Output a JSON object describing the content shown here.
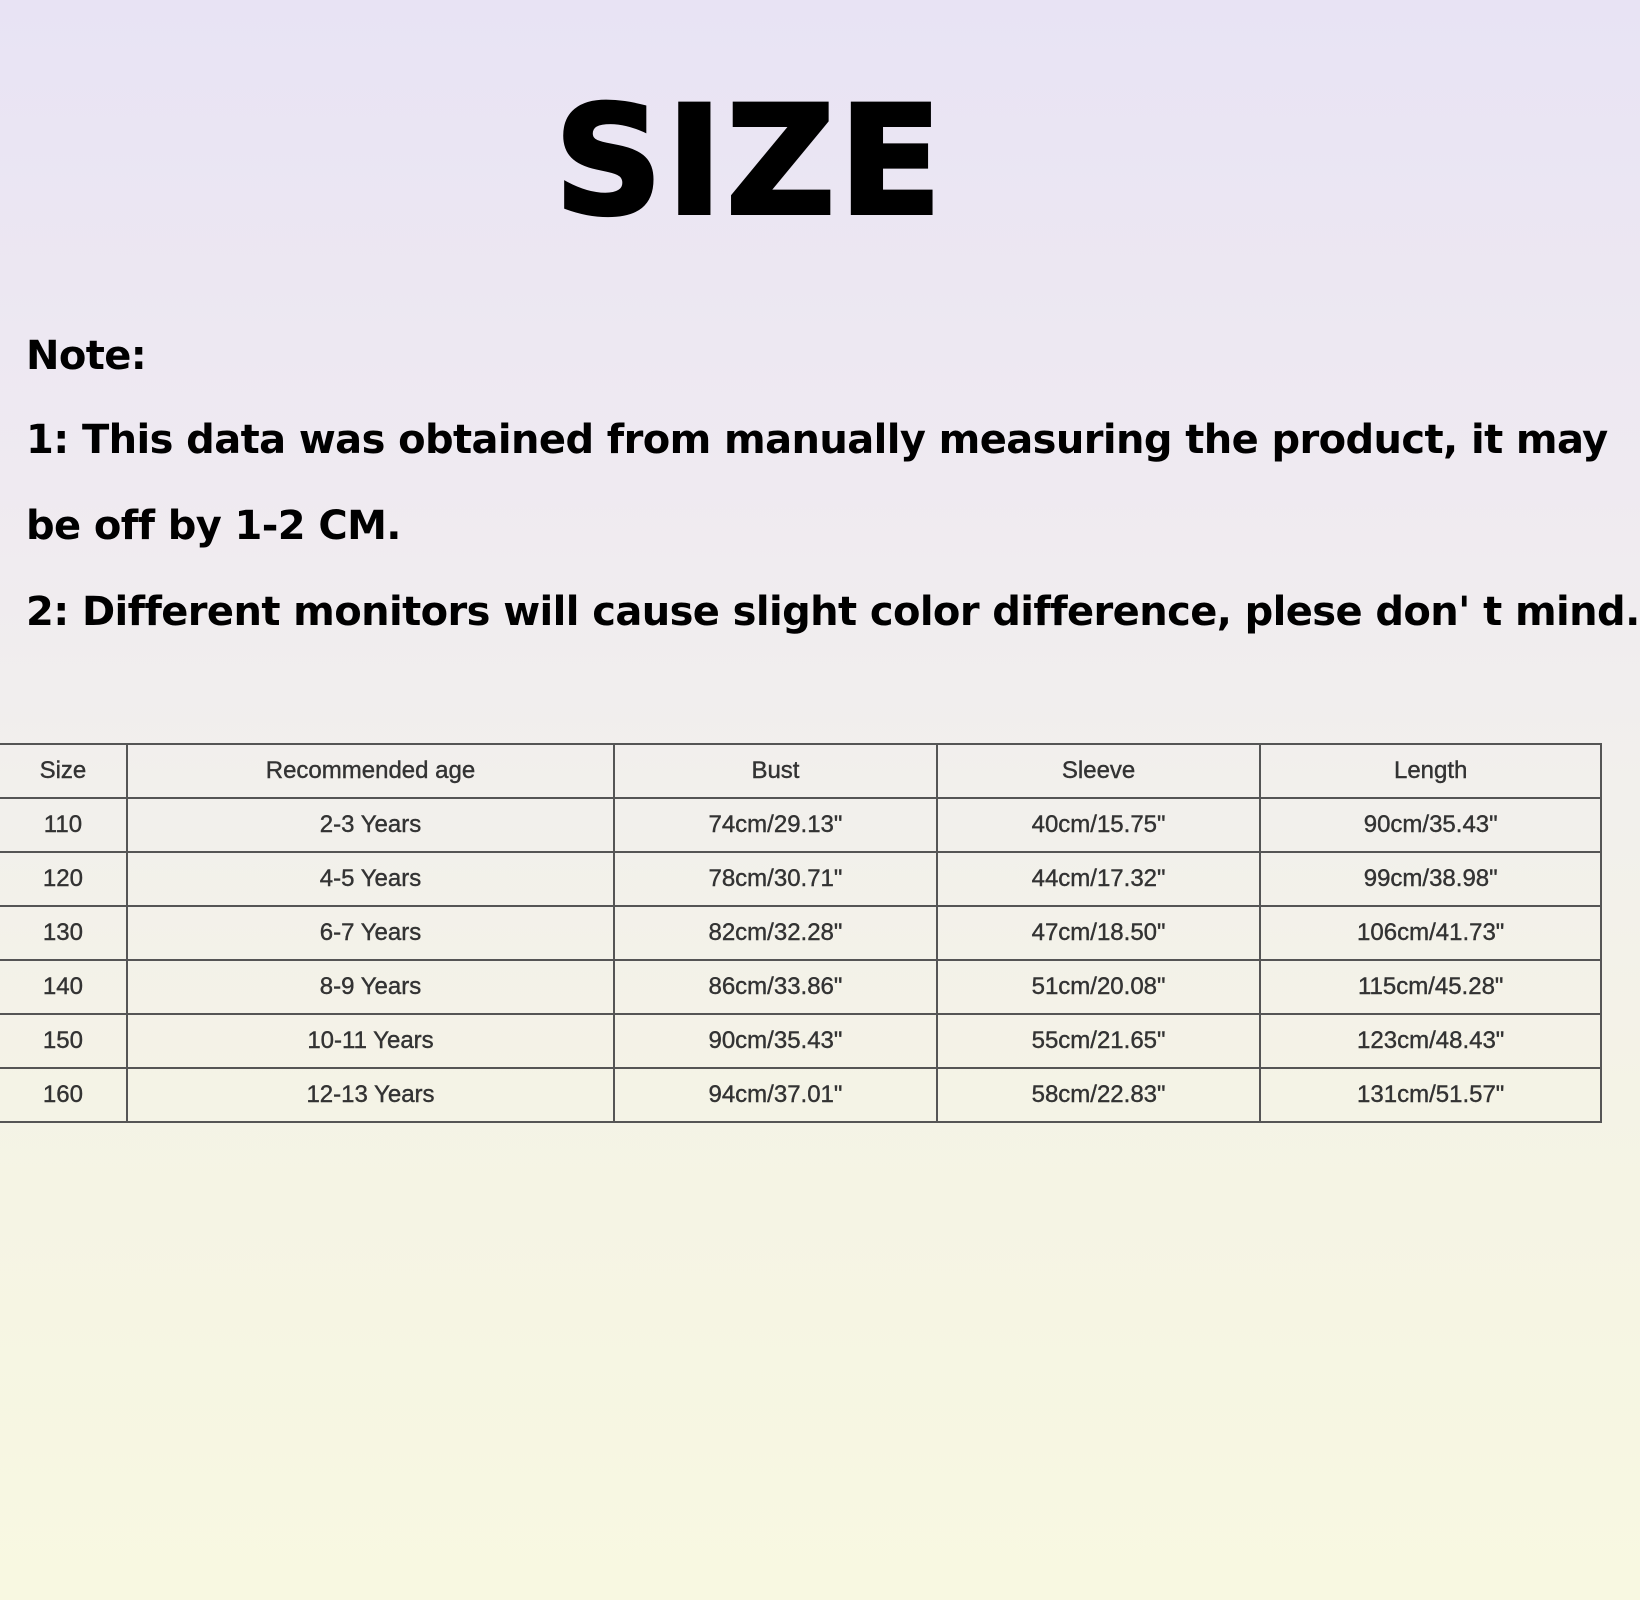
{
  "title": "SIZE",
  "notes": [
    "Note:",
    "1: This data was obtained from manually measuring the product, it may",
    "be off by 1-2 CM.",
    "2: Different monitors will cause slight color difference, plese don' t mind."
  ],
  "table": {
    "headers": [
      "Size",
      "Recommended age",
      "Bust",
      "Sleeve",
      "Length"
    ],
    "rows": [
      [
        "110",
        "2-3 Years",
        "74cm/29.13\"",
        "40cm/15.75\"",
        "90cm/35.43\""
      ],
      [
        "120",
        "4-5 Years",
        "78cm/30.71\"",
        "44cm/17.32\"",
        "99cm/38.98\""
      ],
      [
        "130",
        "6-7 Years",
        "82cm/32.28\"",
        "47cm/18.50\"",
        "106cm/41.73\""
      ],
      [
        "140",
        "8-9 Years",
        "86cm/33.86\"",
        "51cm/20.08\"",
        "115cm/45.28\""
      ],
      [
        "150",
        "10-11 Years",
        "90cm/35.43\"",
        "55cm/21.65\"",
        "123cm/48.43\""
      ],
      [
        "160",
        "12-13 Years",
        "94cm/37.01\"",
        "58cm/22.83\"",
        "131cm/51.57\""
      ]
    ]
  }
}
